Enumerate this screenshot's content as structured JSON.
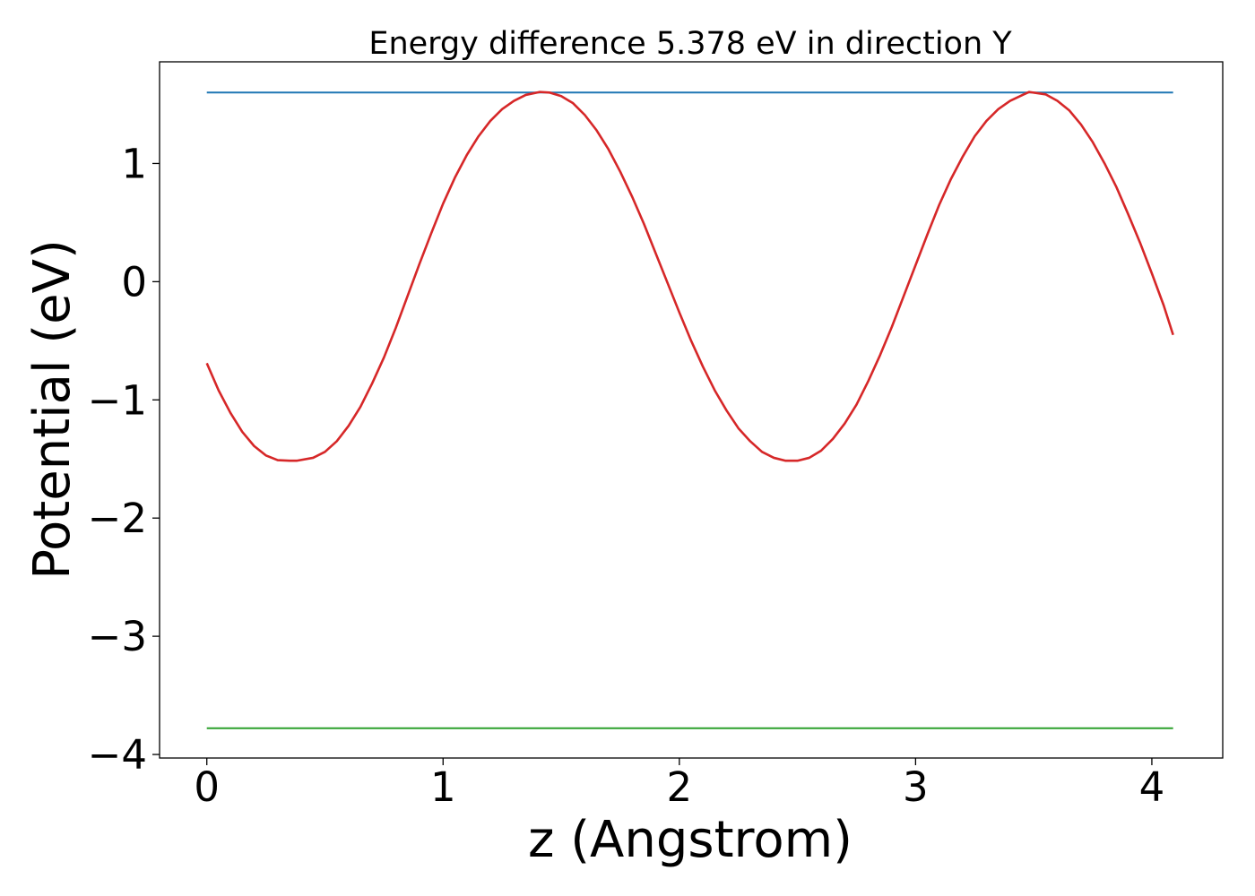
{
  "chart_data": {
    "type": "line",
    "title": "Energy difference 5.378 eV in direction Y",
    "xlabel": "z (Angstrom)",
    "ylabel": "Potential (eV)",
    "xlim": [
      -0.2,
      4.3
    ],
    "ylim": [
      -4.03,
      1.86
    ],
    "x_ticks": [
      0,
      1,
      2,
      3,
      4
    ],
    "x_tick_labels": [
      "0",
      "1",
      "2",
      "3",
      "4"
    ],
    "y_ticks": [
      -4,
      -3,
      -2,
      -1,
      0,
      1
    ],
    "y_tick_labels": [
      "−4",
      "−3",
      "−2",
      "−1",
      "0",
      "1"
    ],
    "grid": false,
    "series": [
      {
        "color": "#1f77b4",
        "kind": "hline",
        "x": [
          0,
          4.09
        ],
        "y": [
          1.6,
          1.6
        ]
      },
      {
        "color": "#2ca02c",
        "kind": "hline",
        "x": [
          0,
          4.09
        ],
        "y": [
          -3.778,
          -3.778
        ]
      },
      {
        "color": "#d62728",
        "kind": "curve",
        "x": [
          0,
          0.05,
          0.1,
          0.15,
          0.2,
          0.25,
          0.3,
          0.35,
          0.38,
          0.45,
          0.5,
          0.55,
          0.6,
          0.65,
          0.7,
          0.75,
          0.8,
          0.85,
          0.9,
          0.95,
          1.0,
          1.05,
          1.1,
          1.15,
          1.2,
          1.25,
          1.3,
          1.35,
          1.41,
          1.45,
          1.5,
          1.55,
          1.6,
          1.65,
          1.7,
          1.75,
          1.8,
          1.85,
          1.9,
          1.95,
          2.0,
          2.05,
          2.1,
          2.15,
          2.2,
          2.25,
          2.3,
          2.35,
          2.4,
          2.45,
          2.5,
          2.55,
          2.6,
          2.65,
          2.7,
          2.75,
          2.8,
          2.85,
          2.9,
          2.95,
          3.0,
          3.05,
          3.1,
          3.15,
          3.2,
          3.25,
          3.3,
          3.35,
          3.4,
          3.48,
          3.55,
          3.6,
          3.65,
          3.7,
          3.75,
          3.8,
          3.85,
          3.9,
          3.95,
          4.0,
          4.05,
          4.09
        ],
        "y": [
          -0.69,
          -0.92,
          -1.11,
          -1.27,
          -1.39,
          -1.47,
          -1.51,
          -1.515,
          -1.515,
          -1.49,
          -1.44,
          -1.35,
          -1.22,
          -1.06,
          -0.86,
          -0.64,
          -0.39,
          -0.12,
          0.15,
          0.41,
          0.66,
          0.88,
          1.07,
          1.23,
          1.36,
          1.46,
          1.53,
          1.58,
          1.605,
          1.6,
          1.57,
          1.51,
          1.41,
          1.28,
          1.12,
          0.93,
          0.72,
          0.49,
          0.24,
          -0.01,
          -0.26,
          -0.5,
          -0.72,
          -0.92,
          -1.09,
          -1.24,
          -1.35,
          -1.44,
          -1.49,
          -1.515,
          -1.515,
          -1.49,
          -1.43,
          -1.33,
          -1.2,
          -1.04,
          -0.84,
          -0.62,
          -0.38,
          -0.12,
          0.14,
          0.4,
          0.65,
          0.87,
          1.06,
          1.23,
          1.36,
          1.46,
          1.53,
          1.605,
          1.585,
          1.53,
          1.45,
          1.33,
          1.18,
          1.0,
          0.8,
          0.57,
          0.33,
          0.07,
          -0.2,
          -0.45
        ]
      }
    ]
  }
}
